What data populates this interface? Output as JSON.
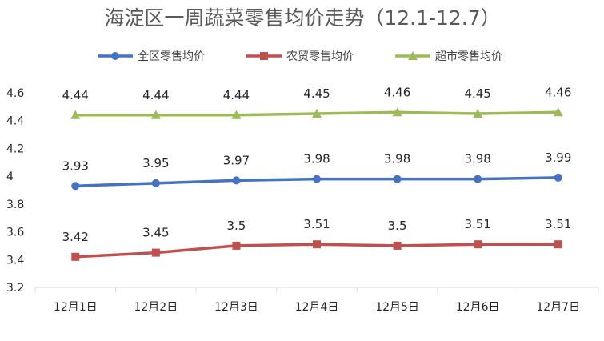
{
  "chart_data": {
    "type": "line",
    "title": "海淀区一周蔬菜零售均价走势（12.1-12.7）",
    "categories": [
      "12月1日",
      "12月2日",
      "12月3日",
      "12月4日",
      "12月5日",
      "12月6日",
      "12月7日"
    ],
    "series": [
      {
        "name": "全区零售均价",
        "color": "#4472C4",
        "marker": "circle",
        "values": [
          3.93,
          3.95,
          3.97,
          3.98,
          3.98,
          3.98,
          3.99
        ]
      },
      {
        "name": "农贸零售均价",
        "color": "#C0504D",
        "marker": "square",
        "values": [
          3.42,
          3.45,
          3.5,
          3.51,
          3.5,
          3.51,
          3.51
        ]
      },
      {
        "name": "超市零售均价",
        "color": "#9BBB59",
        "marker": "triangle",
        "values": [
          4.44,
          4.44,
          4.44,
          4.45,
          4.46,
          4.45,
          4.46
        ]
      }
    ],
    "y_ticks": [
      "3.2",
      "3.4",
      "3.6",
      "3.8",
      "4",
      "4.2",
      "4.4",
      "4.6"
    ],
    "ylim": [
      3.2,
      4.6
    ],
    "grid": false,
    "legend_position": "top"
  }
}
